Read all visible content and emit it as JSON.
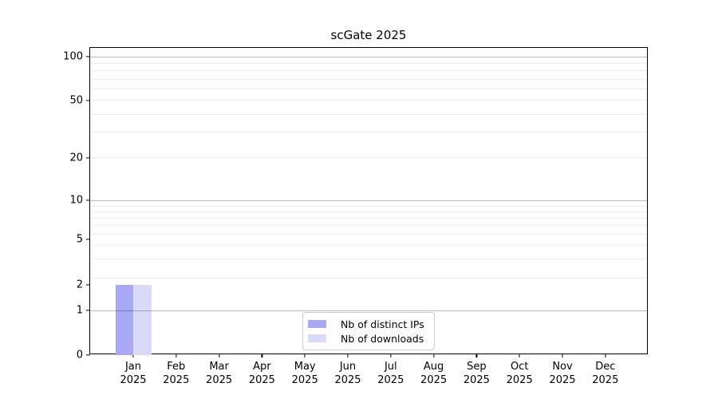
{
  "page": {
    "background": "#ffffff"
  },
  "chart_data": {
    "type": "bar",
    "title": "scGate 2025",
    "categories": [
      "Jan",
      "Feb",
      "Mar",
      "Apr",
      "May",
      "Jun",
      "Jul",
      "Aug",
      "Sep",
      "Oct",
      "Nov",
      "Dec"
    ],
    "x_tick_second_line": "2025",
    "series": [
      {
        "name": "Nb of distinct IPs",
        "color": "#a8a8f4",
        "values": [
          2,
          0,
          0,
          0,
          0,
          0,
          0,
          0,
          0,
          0,
          0,
          0
        ]
      },
      {
        "name": "Nb of downloads",
        "color": "#d9d9f8",
        "values": [
          2,
          0,
          0,
          0,
          0,
          0,
          0,
          0,
          0,
          0,
          0,
          0
        ]
      }
    ],
    "yaxis": {
      "scale": "log-like",
      "ticks": [
        100,
        50,
        20,
        10,
        5,
        2,
        1,
        0
      ],
      "ylim": [
        0,
        100
      ]
    },
    "grid": "horizontal-minor-and-major",
    "legend_position": "lower center",
    "colors": {
      "axis": "#000000",
      "major_gridline": "#bababa",
      "minor_gridline": "#ededed",
      "legend_border": "#cccccc"
    }
  }
}
